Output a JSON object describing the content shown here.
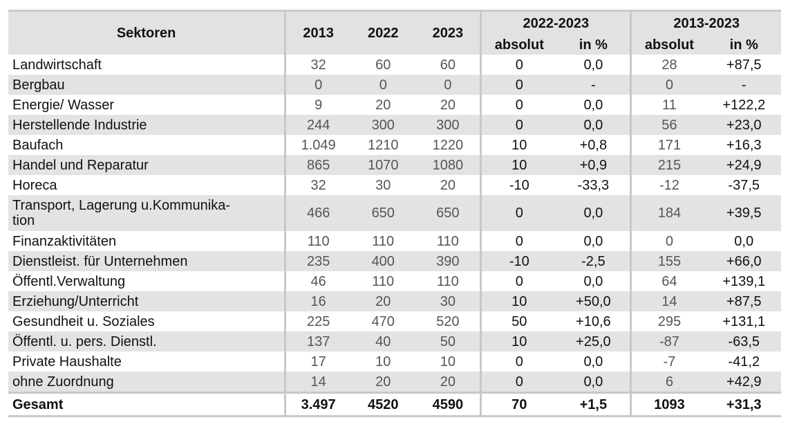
{
  "table": {
    "header": {
      "sector": "Sektoren",
      "y2013": "2013",
      "y2022": "2022",
      "y2023": "2023",
      "group1": "2022-2023",
      "group2": "2013-2023",
      "absolut": "absolut",
      "in_pct": "in %"
    },
    "rows": [
      {
        "name": "Landwirtschaft",
        "v2013": "32",
        "v2022": "60",
        "v2023": "60",
        "abs1": "0",
        "pct1": "0,0",
        "abs2": "28",
        "pct2": "+87,5"
      },
      {
        "name": "Bergbau",
        "v2013": "0",
        "v2022": "0",
        "v2023": "0",
        "abs1": "0",
        "pct1": "-",
        "abs2": "0",
        "pct2": "-"
      },
      {
        "name": "Energie/ Wasser",
        "v2013": "9",
        "v2022": "20",
        "v2023": "20",
        "abs1": "0",
        "pct1": "0,0",
        "abs2": "11",
        "pct2": "+122,2"
      },
      {
        "name": "Herstellende Industrie",
        "v2013": "244",
        "v2022": "300",
        "v2023": "300",
        "abs1": "0",
        "pct1": "0,0",
        "abs2": "56",
        "pct2": "+23,0"
      },
      {
        "name": "Baufach",
        "v2013": "1.049",
        "v2022": "1210",
        "v2023": "1220",
        "abs1": "10",
        "pct1": "+0,8",
        "abs2": "171",
        "pct2": "+16,3"
      },
      {
        "name": "Handel und Reparatur",
        "v2013": "865",
        "v2022": "1070",
        "v2023": "1080",
        "abs1": "10",
        "pct1": "+0,9",
        "abs2": "215",
        "pct2": "+24,9"
      },
      {
        "name": "Horeca",
        "v2013": "32",
        "v2022": "30",
        "v2023": "20",
        "abs1": "-10",
        "pct1": "-33,3",
        "abs2": "-12",
        "pct2": "-37,5"
      },
      {
        "name": "Transport, Lagerung u.Kommunika-\ntion",
        "v2013": "466",
        "v2022": "650",
        "v2023": "650",
        "abs1": "0",
        "pct1": "0,0",
        "abs2": "184",
        "pct2": "+39,5"
      },
      {
        "name": "Finanzaktivitäten",
        "v2013": "110",
        "v2022": "110",
        "v2023": "110",
        "abs1": "0",
        "pct1": "0,0",
        "abs2": "0",
        "pct2": "0,0"
      },
      {
        "name": "Dienstleist. für Unternehmen",
        "v2013": "235",
        "v2022": "400",
        "v2023": "390",
        "abs1": "-10",
        "pct1": "-2,5",
        "abs2": "155",
        "pct2": "+66,0"
      },
      {
        "name": "Öffentl.Verwaltung",
        "v2013": "46",
        "v2022": "110",
        "v2023": "110",
        "abs1": "0",
        "pct1": "0,0",
        "abs2": "64",
        "pct2": "+139,1"
      },
      {
        "name": "Erziehung/Unterricht",
        "v2013": "16",
        "v2022": "20",
        "v2023": "30",
        "abs1": "10",
        "pct1": "+50,0",
        "abs2": "14",
        "pct2": "+87,5"
      },
      {
        "name": "Gesundheit u. Soziales",
        "v2013": "225",
        "v2022": "470",
        "v2023": "520",
        "abs1": "50",
        "pct1": "+10,6",
        "abs2": "295",
        "pct2": "+131,1"
      },
      {
        "name": "Öffentl. u. pers. Dienstl.",
        "v2013": "137",
        "v2022": "40",
        "v2023": "50",
        "abs1": "10",
        "pct1": "+25,0",
        "abs2": "-87",
        "pct2": "-63,5"
      },
      {
        "name": "Private Haushalte",
        "v2013": "17",
        "v2022": "10",
        "v2023": "10",
        "abs1": "0",
        "pct1": "0,0",
        "abs2": "-7",
        "pct2": "-41,2"
      },
      {
        "name": "ohne Zuordnung",
        "v2013": "14",
        "v2022": "20",
        "v2023": "20",
        "abs1": "0",
        "pct1": "0,0",
        "abs2": "6",
        "pct2": "+42,9"
      }
    ],
    "total": {
      "name": "Gesamt",
      "v2013": "3.497",
      "v2022": "4520",
      "v2023": "4590",
      "abs1": "70",
      "pct1": "+1,5",
      "abs2": "1093",
      "pct2": "+31,3"
    }
  }
}
